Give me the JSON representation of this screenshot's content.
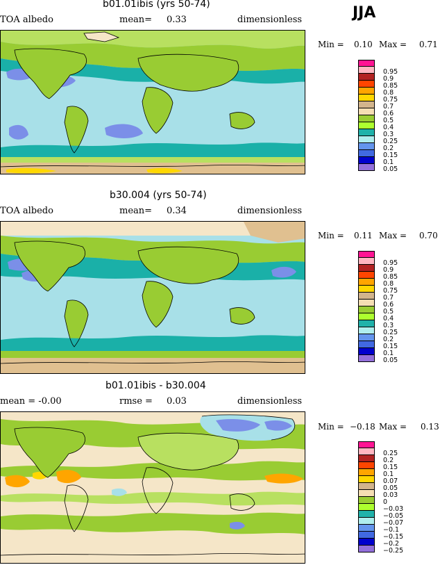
{
  "season": "JJA",
  "colors": {
    "ocean_blue": "#a8e0e8",
    "teal": "#1ab0a8",
    "green": "#99cc33",
    "light_green": "#b8e060",
    "tan": "#e0c090",
    "cream": "#f5e6c8",
    "periwinkle": "#7b8fe8",
    "orange": "#ffa500",
    "yellow": "#ffd700",
    "coast": "#000000"
  },
  "panels": [
    {
      "title": "b01.01ibis (yrs 50-74)",
      "left": "TOA albedo",
      "mid_label": "mean=",
      "mid_value": "0.33",
      "right": "dimensionless",
      "min_label": "Min =",
      "min_value": "0.10",
      "max_label": "Max =",
      "max_value": "0.71",
      "colorbar": {
        "labels": [
          "0.95",
          "0.9",
          "0.85",
          "0.8",
          "0.75",
          "0.7",
          "0.6",
          "0.5",
          "0.4",
          "0.3",
          "0.25",
          "0.2",
          "0.15",
          "0.1",
          "0.05"
        ],
        "colors": [
          "#ff1493",
          "#ffb6c1",
          "#b22222",
          "#ff4500",
          "#ffa500",
          "#ffd700",
          "#d2b48c",
          "#f5deb3",
          "#9acd32",
          "#adff2f",
          "#20b2aa",
          "#afeeee",
          "#6495ed",
          "#4169e1",
          "#0000cd",
          "#9370db"
        ]
      }
    },
    {
      "title": "b30.004 (yrs 50-74)",
      "left": "TOA albedo",
      "mid_label": "mean=",
      "mid_value": "0.34",
      "right": "dimensionless",
      "min_label": "Min =",
      "min_value": "0.11",
      "max_label": "Max =",
      "max_value": "0.70",
      "colorbar": {
        "labels": [
          "0.95",
          "0.9",
          "0.85",
          "0.8",
          "0.75",
          "0.7",
          "0.6",
          "0.5",
          "0.4",
          "0.3",
          "0.25",
          "0.2",
          "0.15",
          "0.1",
          "0.05"
        ],
        "colors": [
          "#ff1493",
          "#ffb6c1",
          "#b22222",
          "#ff4500",
          "#ffa500",
          "#ffd700",
          "#d2b48c",
          "#f5deb3",
          "#9acd32",
          "#adff2f",
          "#20b2aa",
          "#afeeee",
          "#6495ed",
          "#4169e1",
          "#0000cd",
          "#9370db"
        ]
      }
    },
    {
      "title": "b01.01ibis - b30.004",
      "left": "mean =   -0.00",
      "mid_label": "rmse =",
      "mid_value": "0.03",
      "right": "dimensionless",
      "min_label": "Min =",
      "min_value": "−0.18",
      "max_label": "Max =",
      "max_value": "0.13",
      "colorbar": {
        "labels": [
          "0.25",
          "0.2",
          "0.15",
          "0.1",
          "0.07",
          "0.05",
          "0.03",
          "0",
          "−0.03",
          "−0.05",
          "−0.07",
          "−0.1",
          "−0.15",
          "−0.2",
          "−0.25"
        ],
        "colors": [
          "#ff1493",
          "#ffb6c1",
          "#b22222",
          "#ff4500",
          "#ffa500",
          "#ffd700",
          "#d2b48c",
          "#f5deb3",
          "#9acd32",
          "#adff2f",
          "#20b2aa",
          "#afeeee",
          "#6495ed",
          "#4169e1",
          "#0000cd",
          "#9370db"
        ]
      }
    }
  ]
}
